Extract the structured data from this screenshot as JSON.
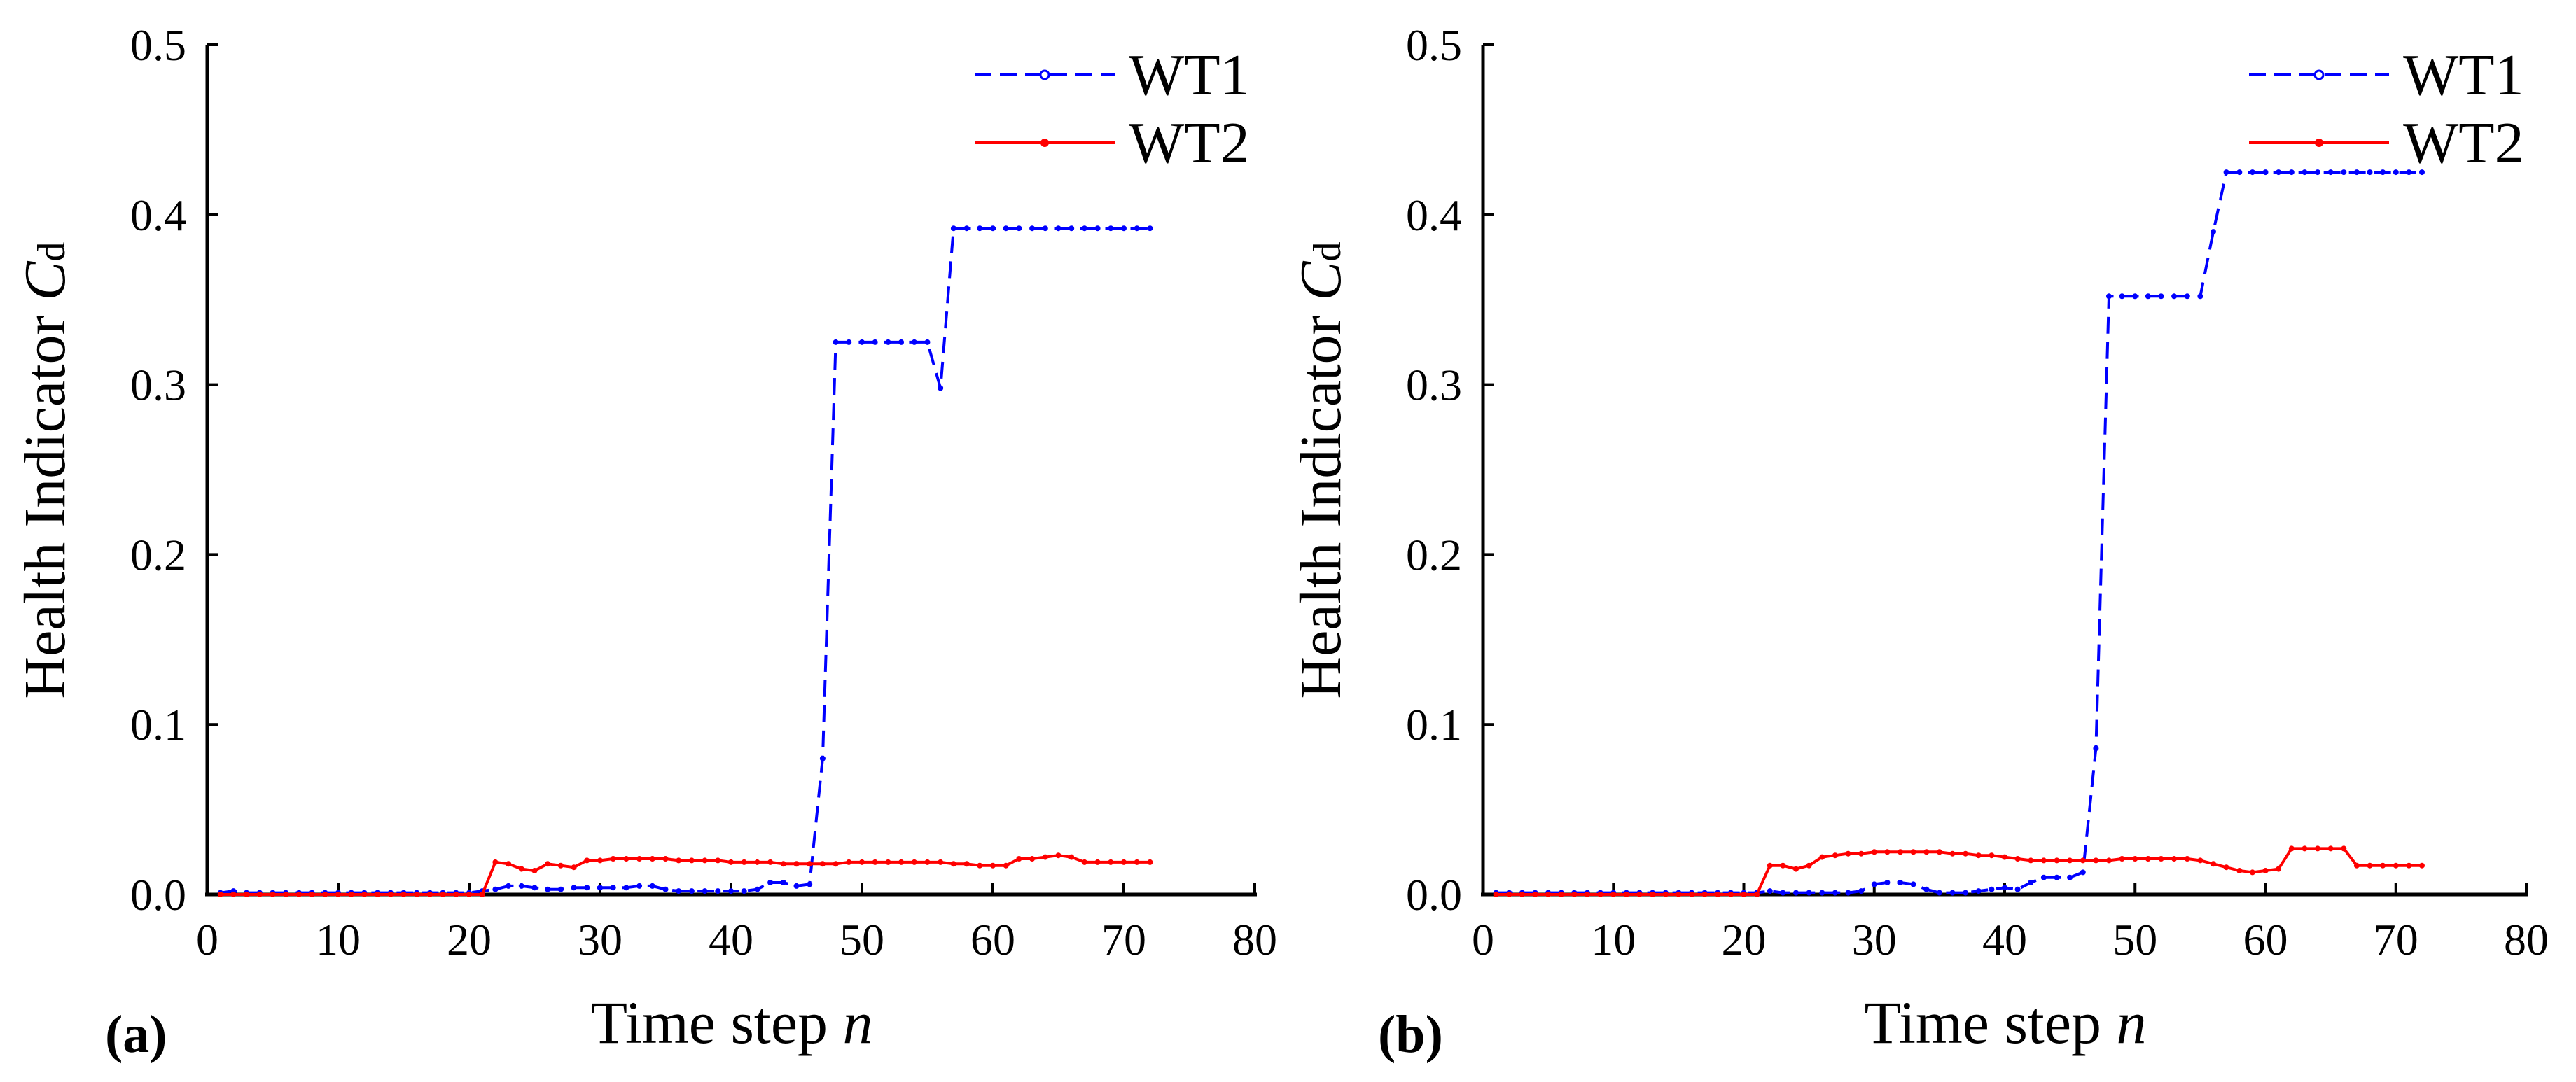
{
  "figure": {
    "panels": [
      "(a)",
      "(b)"
    ]
  },
  "chart_data": [
    {
      "type": "line",
      "panel_label": "(a)",
      "xlabel_main": "Time step",
      "xlabel_var": "n",
      "ylabel_main": "Health Indicator",
      "ylabel_var": "C",
      "ylabel_sub": "d",
      "xlim": [
        0,
        80
      ],
      "ylim": [
        0,
        0.5
      ],
      "xticks": [
        "0",
        "10",
        "20",
        "30",
        "40",
        "50",
        "60",
        "70",
        "80"
      ],
      "yticks": [
        "0.0",
        "0.1",
        "0.2",
        "0.3",
        "0.4",
        "0.5"
      ],
      "legend_position": "top-right",
      "series": [
        {
          "name": "WT1",
          "color": "#0000ff",
          "style": "dashed",
          "x": [
            1,
            2,
            3,
            4,
            5,
            6,
            7,
            8,
            9,
            10,
            11,
            12,
            13,
            14,
            15,
            16,
            17,
            18,
            19,
            20,
            21,
            22,
            23,
            24,
            25,
            26,
            27,
            28,
            29,
            30,
            31,
            32,
            33,
            34,
            35,
            36,
            37,
            38,
            39,
            40,
            41,
            42,
            43,
            44,
            45,
            46,
            47,
            48,
            49,
            50,
            51,
            52,
            53,
            54,
            55,
            56,
            57,
            58,
            59,
            60,
            61,
            62,
            63,
            64,
            65,
            66,
            67,
            68,
            69,
            70,
            71,
            72
          ],
          "y": [
            0.001,
            0.002,
            0.001,
            0.001,
            0.001,
            0.001,
            0.001,
            0.001,
            0.001,
            0.001,
            0.001,
            0.001,
            0.001,
            0.001,
            0.001,
            0.001,
            0.001,
            0.001,
            0.001,
            0.001,
            0.002,
            0.003,
            0.005,
            0.005,
            0.004,
            0.003,
            0.003,
            0.004,
            0.004,
            0.004,
            0.004,
            0.004,
            0.005,
            0.005,
            0.003,
            0.002,
            0.002,
            0.002,
            0.002,
            0.002,
            0.002,
            0.003,
            0.007,
            0.007,
            0.005,
            0.006,
            0.08,
            0.325,
            0.325,
            0.325,
            0.325,
            0.325,
            0.325,
            0.325,
            0.325,
            0.298,
            0.392,
            0.392,
            0.392,
            0.392,
            0.392,
            0.392,
            0.392,
            0.392,
            0.392,
            0.392,
            0.392,
            0.392,
            0.392,
            0.392,
            0.392,
            0.392
          ]
        },
        {
          "name": "WT2",
          "color": "#ff0000",
          "style": "solid",
          "x": [
            1,
            2,
            3,
            4,
            5,
            6,
            7,
            8,
            9,
            10,
            11,
            12,
            13,
            14,
            15,
            16,
            17,
            18,
            19,
            20,
            21,
            22,
            23,
            24,
            25,
            26,
            27,
            28,
            29,
            30,
            31,
            32,
            33,
            34,
            35,
            36,
            37,
            38,
            39,
            40,
            41,
            42,
            43,
            44,
            45,
            46,
            47,
            48,
            49,
            50,
            51,
            52,
            53,
            54,
            55,
            56,
            57,
            58,
            59,
            60,
            61,
            62,
            63,
            64,
            65,
            66,
            67,
            68,
            69,
            70,
            71,
            72
          ],
          "y": [
            0,
            0,
            0,
            0,
            0,
            0,
            0,
            0,
            0,
            0,
            0,
            0,
            0,
            0,
            0,
            0,
            0,
            0,
            0,
            0,
            0,
            0.019,
            0.018,
            0.015,
            0.014,
            0.018,
            0.017,
            0.016,
            0.02,
            0.02,
            0.021,
            0.021,
            0.021,
            0.021,
            0.021,
            0.02,
            0.02,
            0.02,
            0.02,
            0.019,
            0.019,
            0.019,
            0.019,
            0.018,
            0.018,
            0.018,
            0.018,
            0.018,
            0.019,
            0.019,
            0.019,
            0.019,
            0.019,
            0.019,
            0.019,
            0.019,
            0.018,
            0.018,
            0.017,
            0.017,
            0.017,
            0.021,
            0.021,
            0.022,
            0.023,
            0.022,
            0.019,
            0.019,
            0.019,
            0.019,
            0.019,
            0.019
          ]
        }
      ]
    },
    {
      "type": "line",
      "panel_label": "(b)",
      "xlabel_main": "Time step",
      "xlabel_var": "n",
      "ylabel_main": "Health Indicator",
      "ylabel_var": "C",
      "ylabel_sub": "d",
      "xlim": [
        0,
        80
      ],
      "ylim": [
        0,
        0.5
      ],
      "xticks": [
        "0",
        "10",
        "20",
        "30",
        "40",
        "50",
        "60",
        "70",
        "80"
      ],
      "yticks": [
        "0.0",
        "0.1",
        "0.2",
        "0.3",
        "0.4",
        "0.5"
      ],
      "legend_position": "top-right",
      "series": [
        {
          "name": "WT1",
          "color": "#0000ff",
          "style": "dashed",
          "x": [
            1,
            2,
            3,
            4,
            5,
            6,
            7,
            8,
            9,
            10,
            11,
            12,
            13,
            14,
            15,
            16,
            17,
            18,
            19,
            20,
            21,
            22,
            23,
            24,
            25,
            26,
            27,
            28,
            29,
            30,
            31,
            32,
            33,
            34,
            35,
            36,
            37,
            38,
            39,
            40,
            41,
            42,
            43,
            44,
            45,
            46,
            47,
            48,
            49,
            50,
            51,
            52,
            53,
            54,
            55,
            56,
            57,
            58,
            59,
            60,
            61,
            62,
            63,
            64,
            65,
            66,
            67,
            68,
            69,
            70,
            71,
            72
          ],
          "y": [
            0.001,
            0.001,
            0.001,
            0.001,
            0.001,
            0.001,
            0.001,
            0.001,
            0.001,
            0.001,
            0.001,
            0.001,
            0.001,
            0.001,
            0.001,
            0.001,
            0.001,
            0.001,
            0.001,
            0.001,
            0.001,
            0.002,
            0.001,
            0.001,
            0.001,
            0.001,
            0.001,
            0.001,
            0.002,
            0.006,
            0.007,
            0.007,
            0.006,
            0.003,
            0.001,
            0.001,
            0.001,
            0.002,
            0.003,
            0.004,
            0.003,
            0.007,
            0.01,
            0.01,
            0.01,
            0.013,
            0.086,
            0.352,
            0.352,
            0.352,
            0.352,
            0.352,
            0.352,
            0.352,
            0.352,
            0.39,
            0.425,
            0.425,
            0.425,
            0.425,
            0.425,
            0.425,
            0.425,
            0.425,
            0.425,
            0.425,
            0.425,
            0.425,
            0.425,
            0.425,
            0.425,
            0.425
          ]
        },
        {
          "name": "WT2",
          "color": "#ff0000",
          "style": "solid",
          "x": [
            1,
            2,
            3,
            4,
            5,
            6,
            7,
            8,
            9,
            10,
            11,
            12,
            13,
            14,
            15,
            16,
            17,
            18,
            19,
            20,
            21,
            22,
            23,
            24,
            25,
            26,
            27,
            28,
            29,
            30,
            31,
            32,
            33,
            34,
            35,
            36,
            37,
            38,
            39,
            40,
            41,
            42,
            43,
            44,
            45,
            46,
            47,
            48,
            49,
            50,
            51,
            52,
            53,
            54,
            55,
            56,
            57,
            58,
            59,
            60,
            61,
            62,
            63,
            64,
            65,
            66,
            67,
            68,
            69,
            70,
            71,
            72
          ],
          "y": [
            0,
            0,
            0,
            0,
            0,
            0,
            0,
            0,
            0,
            0,
            0,
            0,
            0,
            0,
            0,
            0,
            0,
            0,
            0,
            0,
            0,
            0.017,
            0.017,
            0.015,
            0.017,
            0.022,
            0.023,
            0.024,
            0.024,
            0.025,
            0.025,
            0.025,
            0.025,
            0.025,
            0.025,
            0.024,
            0.024,
            0.023,
            0.023,
            0.022,
            0.021,
            0.02,
            0.02,
            0.02,
            0.02,
            0.02,
            0.02,
            0.02,
            0.021,
            0.021,
            0.021,
            0.021,
            0.021,
            0.021,
            0.02,
            0.018,
            0.016,
            0.014,
            0.013,
            0.014,
            0.015,
            0.027,
            0.027,
            0.027,
            0.027,
            0.027,
            0.017,
            0.017,
            0.017,
            0.017,
            0.017,
            0.017
          ]
        }
      ]
    }
  ]
}
